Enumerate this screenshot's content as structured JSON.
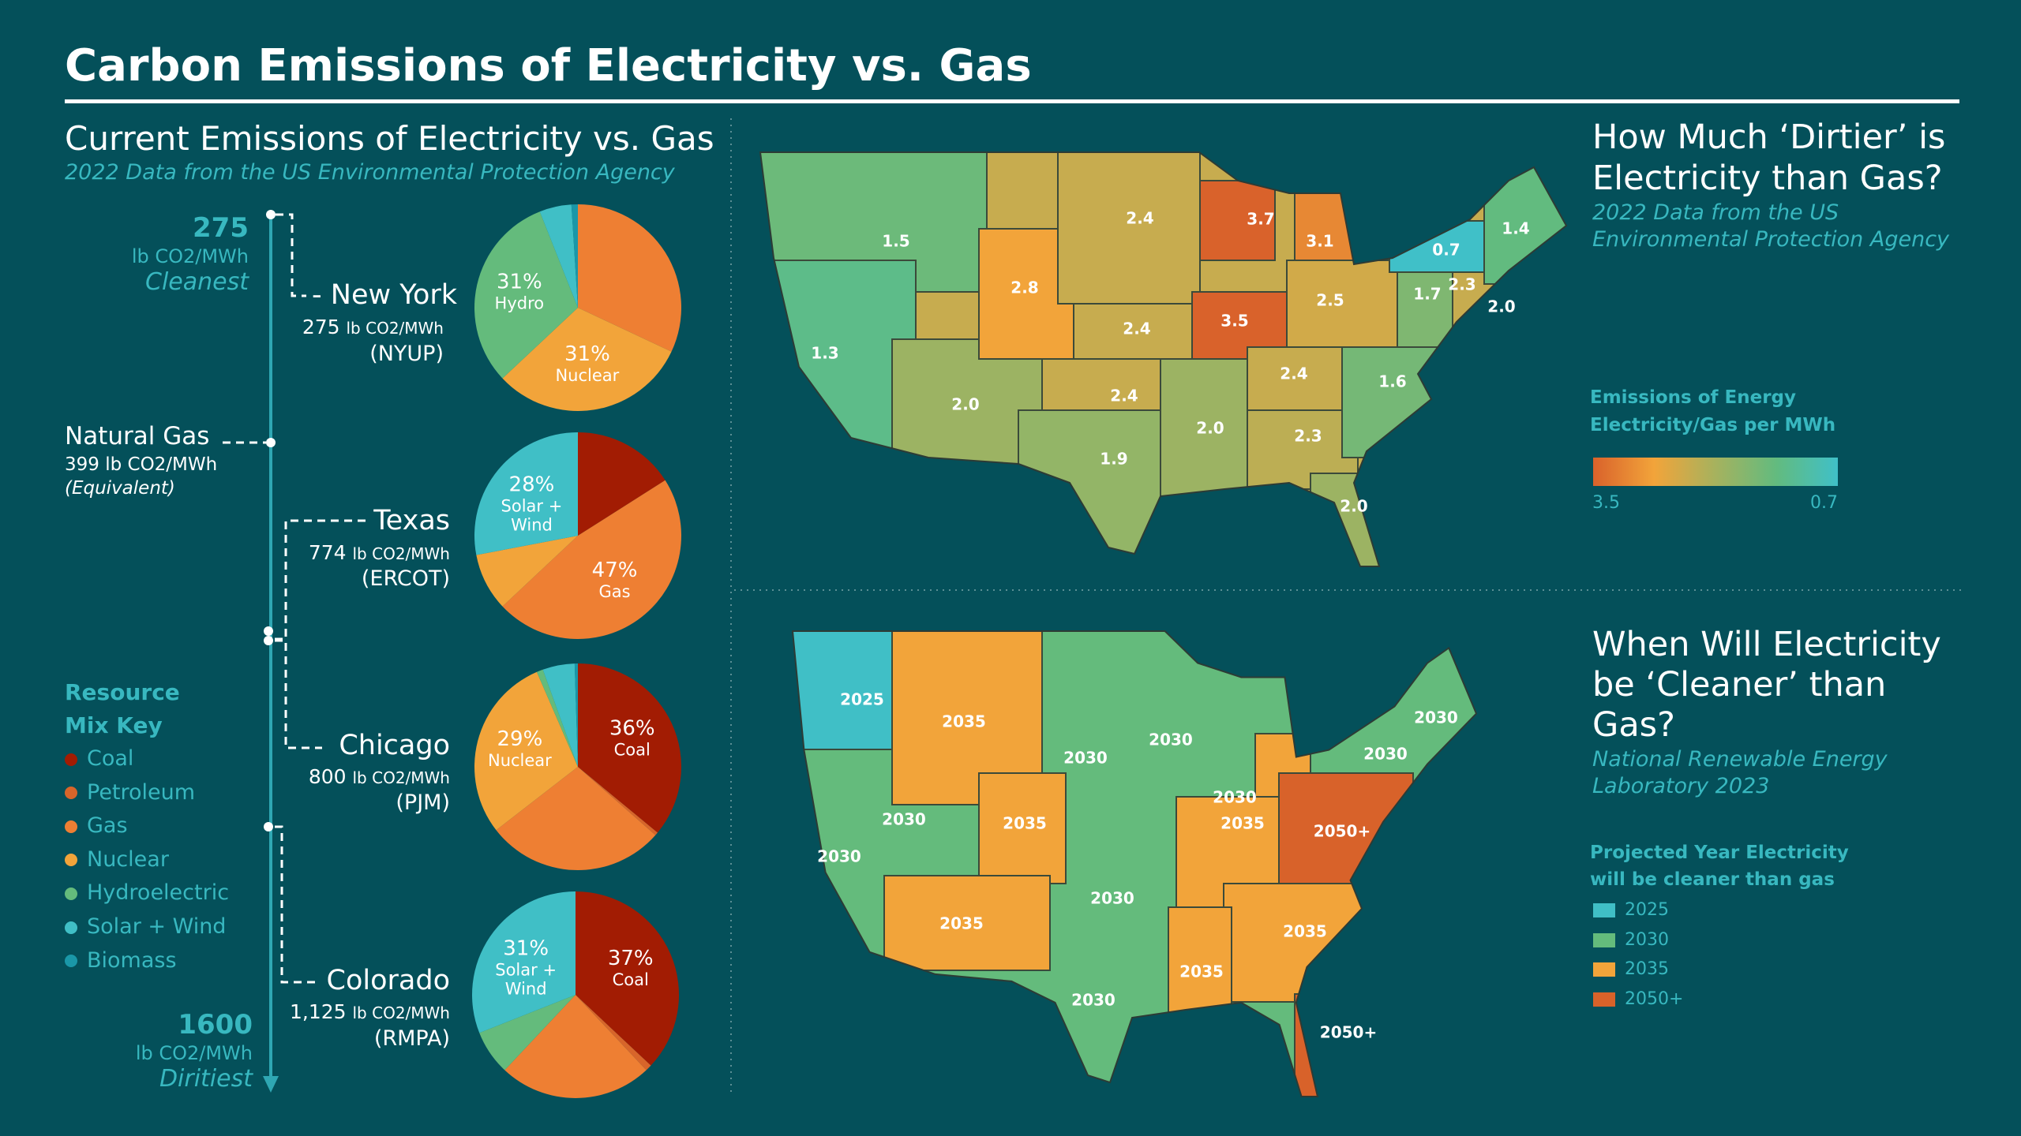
{
  "title": "Carbon Emissions of Electricity vs. Gas",
  "colors": {
    "background": "#04505a",
    "accent": "#38b8c0"
  },
  "left": {
    "heading": "Current Emissions of Electricity vs. Gas",
    "subtitle": "2022 Data from the US Environmental Protection Agency",
    "scale_top": {
      "value": "275",
      "unit": "lb CO2/MWh",
      "label": "Cleanest"
    },
    "scale_bottom": {
      "value": "1600",
      "unit": "lb CO2/MWh",
      "label": "Diritiest"
    },
    "natural_gas": {
      "label": "Natural Gas",
      "value": "399 lb CO2/MWh",
      "note": "(Equivalent)"
    },
    "regions": [
      {
        "name": "New York",
        "value": "275",
        "unit": "lb CO2/MWh",
        "code": "(NYUP)",
        "slices": [
          {
            "resource": "Gas",
            "pct": 32,
            "label": ""
          },
          {
            "resource": "Nuclear",
            "pct": 31,
            "label": "31%",
            "sublabel": "Nuclear"
          },
          {
            "resource": "Hydroelectric",
            "pct": 31,
            "label": "31%",
            "sublabel": "Hydro"
          },
          {
            "resource": "Solar + Wind",
            "pct": 5,
            "label": ""
          },
          {
            "resource": "Biomass",
            "pct": 1,
            "label": ""
          }
        ]
      },
      {
        "name": "Texas",
        "value": "774",
        "unit": "lb CO2/MWh",
        "code": "(ERCOT)",
        "slices": [
          {
            "resource": "Coal",
            "pct": 16,
            "label": ""
          },
          {
            "resource": "Gas",
            "pct": 47,
            "label": "47%",
            "sublabel": "Gas"
          },
          {
            "resource": "Nuclear",
            "pct": 9,
            "label": ""
          },
          {
            "resource": "Solar + Wind",
            "pct": 28,
            "label": "28%",
            "sublabel": "Solar +",
            "sublabel2": "Wind"
          }
        ]
      },
      {
        "name": "Chicago",
        "value": "800",
        "unit": "lb CO2/MWh",
        "code": "(PJM)",
        "slices": [
          {
            "resource": "Coal",
            "pct": 36,
            "label": "36%",
            "sublabel": "Coal"
          },
          {
            "resource": "Petroleum",
            "pct": 0.5,
            "label": ""
          },
          {
            "resource": "Gas",
            "pct": 28,
            "label": ""
          },
          {
            "resource": "Nuclear",
            "pct": 29,
            "label": "29%",
            "sublabel": "Nuclear"
          },
          {
            "resource": "Hydroelectric",
            "pct": 1,
            "label": ""
          },
          {
            "resource": "Solar + Wind",
            "pct": 5,
            "label": ""
          },
          {
            "resource": "Biomass",
            "pct": 0.5,
            "label": ""
          }
        ]
      },
      {
        "name": "Colorado",
        "value": "1,125",
        "unit": "lb CO2/MWh",
        "code": "(RMPA)",
        "slices": [
          {
            "resource": "Coal",
            "pct": 37,
            "label": "37%",
            "sublabel": "Coal"
          },
          {
            "resource": "Petroleum",
            "pct": 1,
            "label": ""
          },
          {
            "resource": "Gas",
            "pct": 24,
            "label": ""
          },
          {
            "resource": "Hydroelectric",
            "pct": 7,
            "label": ""
          },
          {
            "resource": "Solar + Wind",
            "pct": 31,
            "label": "31%",
            "sublabel": "Solar +",
            "sublabel2": "Wind"
          }
        ]
      }
    ],
    "key": {
      "title1": "Resource",
      "title2": "Mix Key",
      "items": [
        {
          "label": "Coal",
          "color": "#a21c03"
        },
        {
          "label": "Petroleum",
          "color": "#d8652a"
        },
        {
          "label": "Gas",
          "color": "#ee7f33"
        },
        {
          "label": "Nuclear",
          "color": "#f2a43a"
        },
        {
          "label": "Hydroelectric",
          "color": "#64bb7c"
        },
        {
          "label": "Solar + Wind",
          "color": "#40bfc6"
        },
        {
          "label": "Biomass",
          "color": "#1a97a8"
        }
      ]
    }
  },
  "map1": {
    "title1": "How Much ‘Dirtier’ is",
    "title2": "Electricity than Gas?",
    "subtitle1": "2022 Data from the US",
    "subtitle2": "Environmental Protection Agency",
    "legend1": "Emissions of Energy",
    "legend2": "Electricity/Gas per MWh",
    "scale_min_label": "3.5",
    "scale_max_label": "0.7",
    "scale_stops": [
      "#d9622b",
      "#f2a43a",
      "#a6b25e",
      "#62bb7f",
      "#40c0c8"
    ],
    "values": [
      "1.5",
      "1.3",
      "2.0",
      "2.8",
      "2.4",
      "2.4",
      "2.4",
      "1.9",
      "2.0",
      "3.5",
      "3.7",
      "3.1",
      "2.5",
      "2.4",
      "2.3",
      "2.0",
      "1.6",
      "1.7",
      "0.7",
      "1.4",
      "2.3",
      "2.0"
    ]
  },
  "map2": {
    "title1": "When Will Electricity",
    "title2": "be ‘Cleaner’ than",
    "title3": "Gas?",
    "subtitle1": "National Renewable Energy",
    "subtitle2": "Laboratory 2023",
    "legend1": "Projected Year Electricity",
    "legend2": "will be cleaner than gas",
    "legend_items": [
      {
        "label": "2025",
        "color": "#40bfc6"
      },
      {
        "label": "2030",
        "color": "#64bb7c"
      },
      {
        "label": "2035",
        "color": "#f2a43a"
      },
      {
        "label": "2050+",
        "color": "#d8622a"
      }
    ],
    "labels": [
      "2025",
      "2035",
      "2030",
      "2030",
      "2030",
      "2030",
      "2030",
      "2035",
      "2050+",
      "2030",
      "2035",
      "2030",
      "2030",
      "2035",
      "2035",
      "2035",
      "2030",
      "2050+"
    ]
  }
}
